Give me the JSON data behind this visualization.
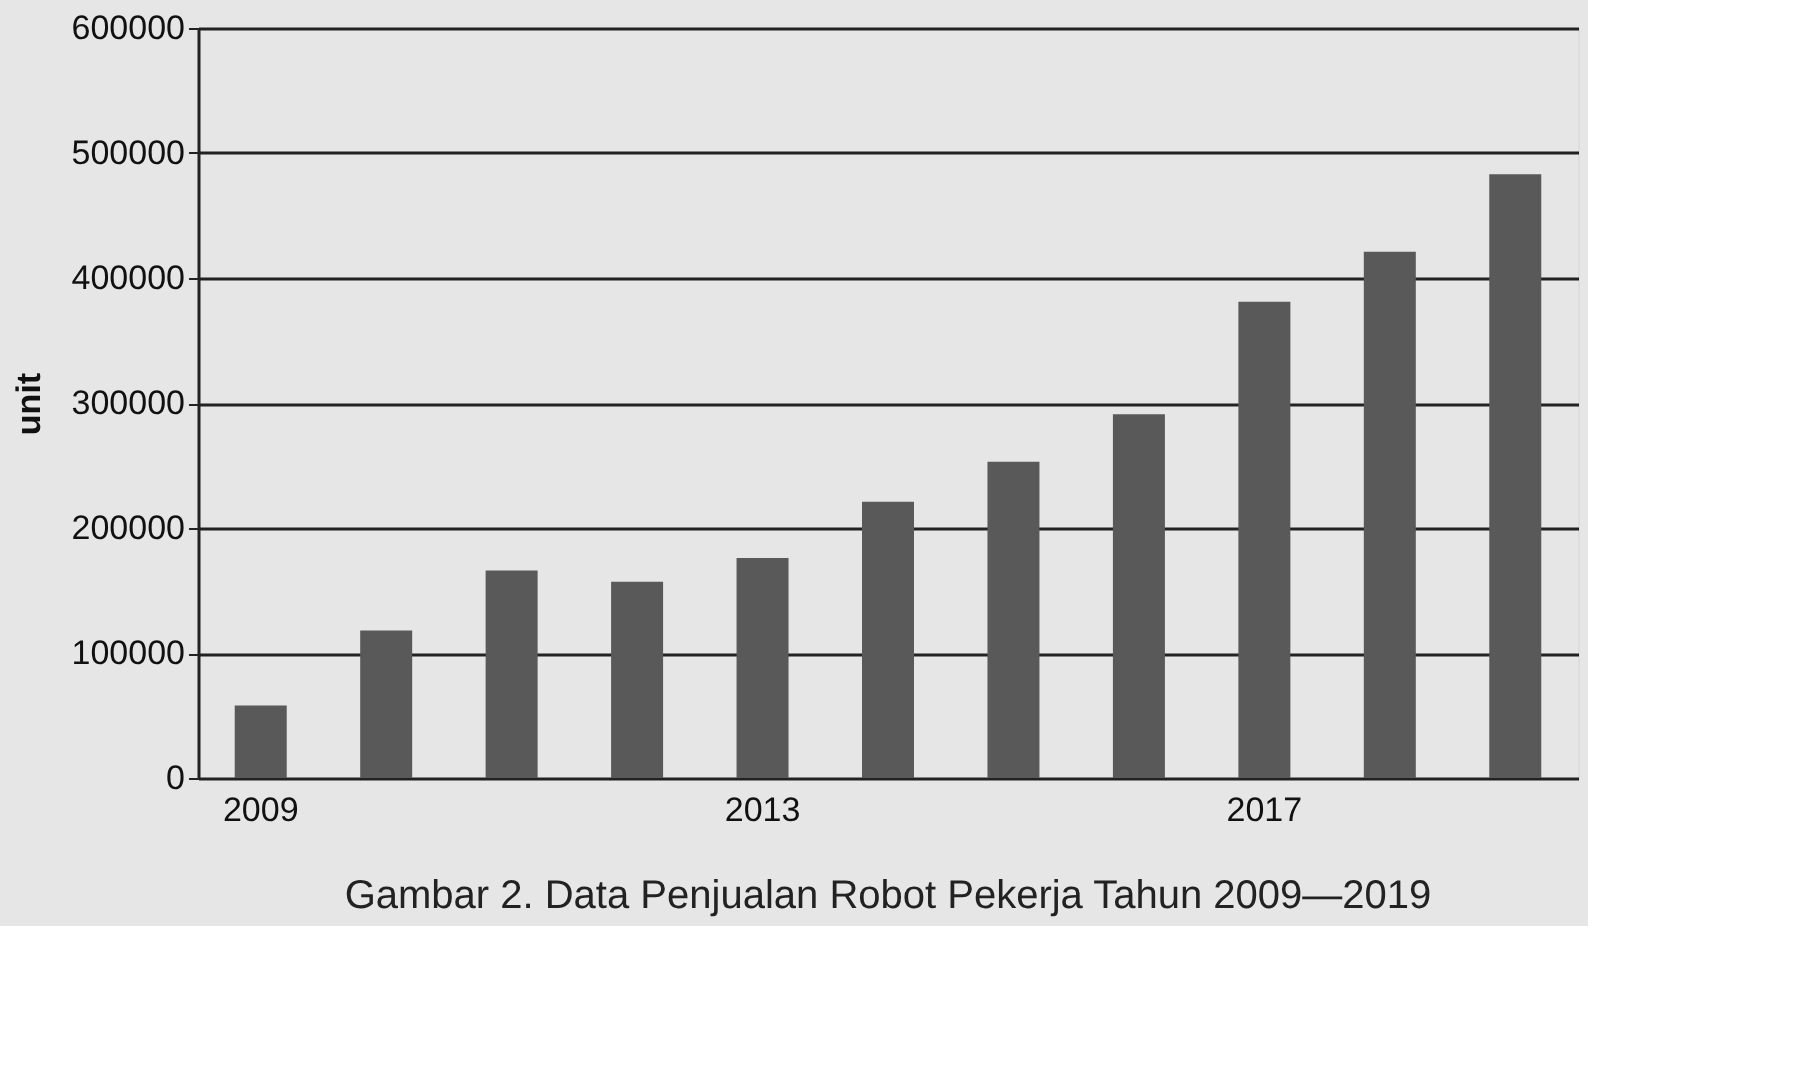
{
  "chart_data": {
    "type": "bar",
    "title": "Gambar 2. Data Penjualan Robot Pekerja Tahun 2009—2019",
    "ylabel": "unit",
    "categories": [
      "2009",
      null,
      null,
      null,
      "2013",
      null,
      null,
      null,
      "2017",
      null,
      null
    ],
    "values": [
      58000,
      118000,
      166000,
      157000,
      176000,
      221000,
      253000,
      291000,
      381000,
      421000,
      483000
    ],
    "color": "#595959",
    "ylim": [
      0,
      600000
    ],
    "yticks": [
      0,
      100000,
      200000,
      300000,
      400000,
      500000,
      600000
    ],
    "grid": "y"
  }
}
